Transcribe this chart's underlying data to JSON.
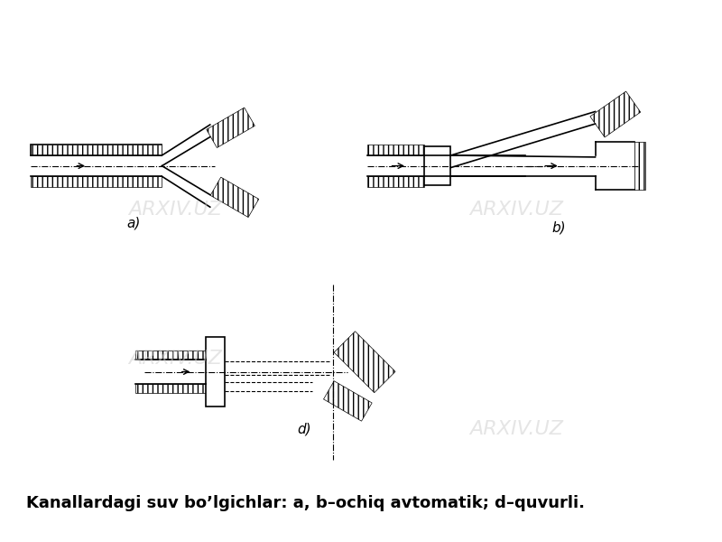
{
  "title": "Kanallardagi suv bo’lgichlar: a, b–ochiq avtomatik; d–quvurli.",
  "title_fontsize": 13,
  "title_fontweight": "bold",
  "bg_color": "#ffffff",
  "line_color": "#000000",
  "hatch_color": "#000000",
  "fig_width": 8.0,
  "fig_height": 6.0,
  "label_a": "a)",
  "label_b": "b)",
  "label_d": "d)"
}
